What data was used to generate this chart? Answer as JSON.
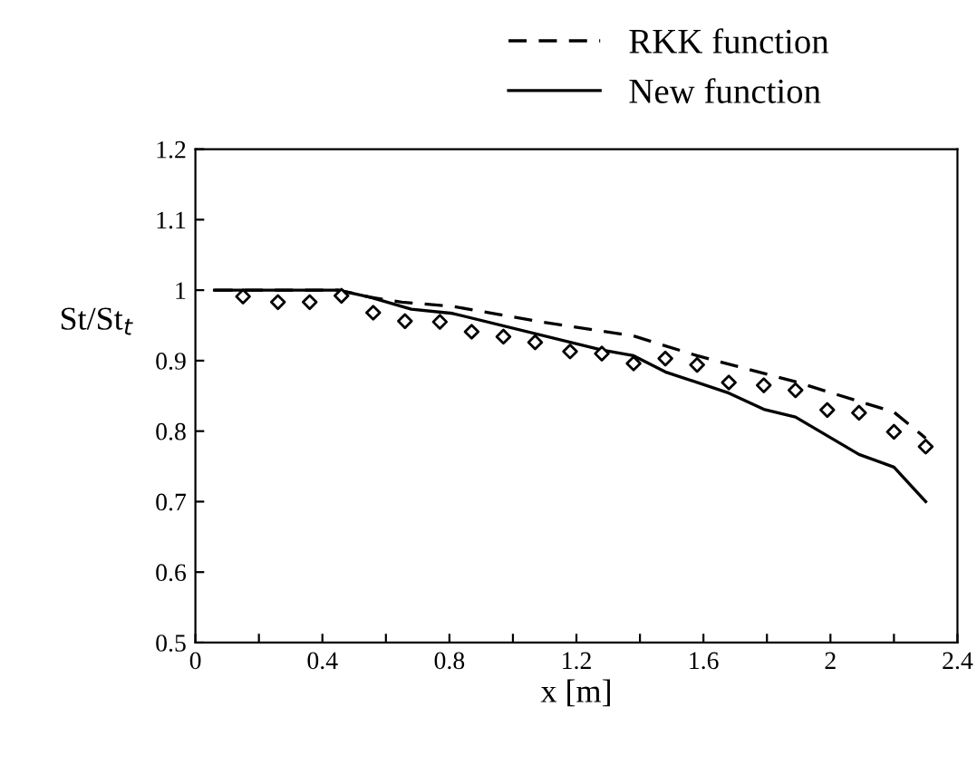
{
  "chart_data": {
    "type": "line",
    "xlabel": "x [m]",
    "ylabel": "St/St$_{t}$",
    "xlim": [
      0,
      2.4
    ],
    "ylim": [
      0.5,
      1.2
    ],
    "xticks": [
      0,
      {
        "value": 0.2,
        "label": null
      },
      0.4,
      {
        "value": 0.6,
        "label": null
      },
      0.8,
      {
        "value": 1.0,
        "label": null
      },
      1.2,
      {
        "value": 1.4,
        "label": null
      },
      1.6,
      {
        "value": 1.8,
        "label": null
      },
      2,
      {
        "value": 2.2,
        "label": null
      },
      2.4
    ],
    "yticks": [
      0.5,
      0.6,
      0.7,
      0.8,
      0.9,
      1,
      1.1,
      1.2
    ],
    "legend": "top right",
    "grid": false,
    "series": [
      {
        "name": "RKK function",
        "color": "#000000",
        "line_style": "dashed",
        "x": [
          0.06,
          0.45,
          0.55,
          0.65,
          0.81,
          1.09,
          1.38,
          1.58,
          1.89,
          2.2,
          2.3
        ],
        "values": [
          1.0,
          1.0,
          0.99,
          0.983,
          0.977,
          0.955,
          0.935,
          0.907,
          0.87,
          0.827,
          0.79
        ]
      },
      {
        "name": "New function",
        "color": "#000000",
        "line_style": "solid",
        "x": [
          0.06,
          0.45,
          0.55,
          0.68,
          0.81,
          1.28,
          1.38,
          1.48,
          1.68,
          1.79,
          1.89,
          2.09,
          2.2,
          2.3
        ],
        "values": [
          1.0,
          1.0,
          0.99,
          0.973,
          0.967,
          0.915,
          0.907,
          0.884,
          0.854,
          0.831,
          0.82,
          0.767,
          0.749,
          0.7
        ]
      },
      {
        "type": "scatter",
        "marker": "diamond",
        "color": "#000000",
        "x": [
          0.15,
          0.26,
          0.36,
          0.46,
          0.56,
          0.66,
          0.77,
          0.87,
          0.97,
          1.07,
          1.18,
          1.28,
          1.38,
          1.48,
          1.58,
          1.68,
          1.79,
          1.89,
          1.99,
          2.09,
          2.2,
          2.3
        ],
        "values": [
          0.991,
          0.983,
          0.983,
          0.992,
          0.968,
          0.956,
          0.955,
          0.941,
          0.934,
          0.926,
          0.913,
          0.91,
          0.896,
          0.903,
          0.894,
          0.869,
          0.865,
          0.858,
          0.83,
          0.826,
          0.799,
          0.778
        ]
      }
    ]
  }
}
